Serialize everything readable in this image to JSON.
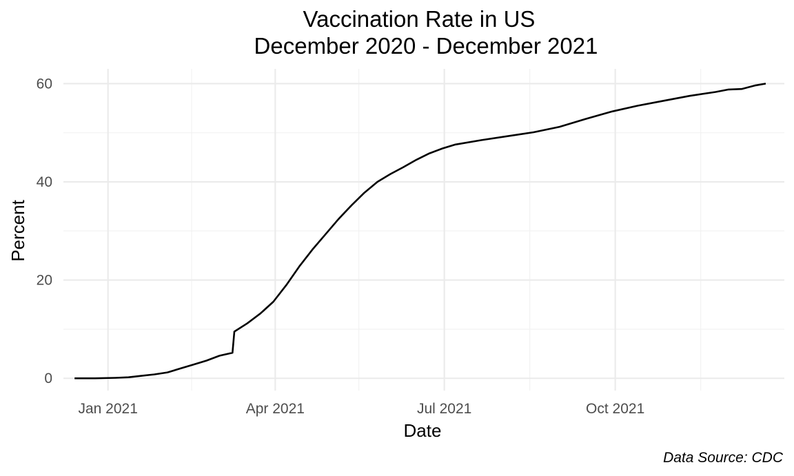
{
  "chart_data": {
    "type": "line",
    "title": "Vaccination Rate in US",
    "subtitle": "December 2020 - December 2021",
    "xlabel": "Date",
    "ylabel": "Percent",
    "caption": "Data Source: CDC",
    "grid": true,
    "legend": "none",
    "xlim": [
      "2020-12-08",
      "2021-12-31"
    ],
    "ylim": [
      -2.5,
      63
    ],
    "x_ticks": [
      {
        "date": "2021-01-01",
        "label": "Jan 2021"
      },
      {
        "date": "2021-04-01",
        "label": "Apr 2021"
      },
      {
        "date": "2021-07-01",
        "label": "Jul 2021"
      },
      {
        "date": "2021-10-01",
        "label": "Oct 2021"
      }
    ],
    "x_minor_ticks": [
      "2021-02-15",
      "2021-05-16",
      "2021-08-16",
      "2021-11-16"
    ],
    "y_ticks": [
      0,
      20,
      40,
      60
    ],
    "y_minor_ticks": [
      10,
      30,
      50
    ],
    "series": [
      {
        "color": "#000000",
        "points": [
          [
            "2020-12-14",
            0
          ],
          [
            "2020-12-25",
            0
          ],
          [
            "2021-01-05",
            0.1
          ],
          [
            "2021-01-12",
            0.2
          ],
          [
            "2021-01-19",
            0.5
          ],
          [
            "2021-01-26",
            0.8
          ],
          [
            "2021-02-02",
            1.2
          ],
          [
            "2021-02-09",
            2.0
          ],
          [
            "2021-02-16",
            2.8
          ],
          [
            "2021-02-23",
            3.6
          ],
          [
            "2021-03-02",
            4.6
          ],
          [
            "2021-03-09",
            5.2
          ],
          [
            "2021-03-10",
            9.5
          ],
          [
            "2021-03-17",
            11.2
          ],
          [
            "2021-03-24",
            13.2
          ],
          [
            "2021-03-31",
            15.6
          ],
          [
            "2021-04-07",
            19.0
          ],
          [
            "2021-04-14",
            22.8
          ],
          [
            "2021-04-21",
            26.2
          ],
          [
            "2021-04-28",
            29.3
          ],
          [
            "2021-05-05",
            32.4
          ],
          [
            "2021-05-12",
            35.2
          ],
          [
            "2021-05-19",
            37.8
          ],
          [
            "2021-05-26",
            40.0
          ],
          [
            "2021-06-02",
            41.6
          ],
          [
            "2021-06-09",
            43.0
          ],
          [
            "2021-06-16",
            44.5
          ],
          [
            "2021-06-23",
            45.8
          ],
          [
            "2021-06-30",
            46.8
          ],
          [
            "2021-07-07",
            47.6
          ],
          [
            "2021-07-21",
            48.5
          ],
          [
            "2021-08-04",
            49.3
          ],
          [
            "2021-08-18",
            50.1
          ],
          [
            "2021-09-01",
            51.2
          ],
          [
            "2021-09-15",
            52.8
          ],
          [
            "2021-09-29",
            54.3
          ],
          [
            "2021-10-13",
            55.5
          ],
          [
            "2021-10-27",
            56.5
          ],
          [
            "2021-11-10",
            57.5
          ],
          [
            "2021-11-24",
            58.3
          ],
          [
            "2021-12-01",
            58.8
          ],
          [
            "2021-12-08",
            58.9
          ],
          [
            "2021-12-15",
            59.6
          ],
          [
            "2021-12-21",
            60.0
          ]
        ]
      }
    ]
  }
}
